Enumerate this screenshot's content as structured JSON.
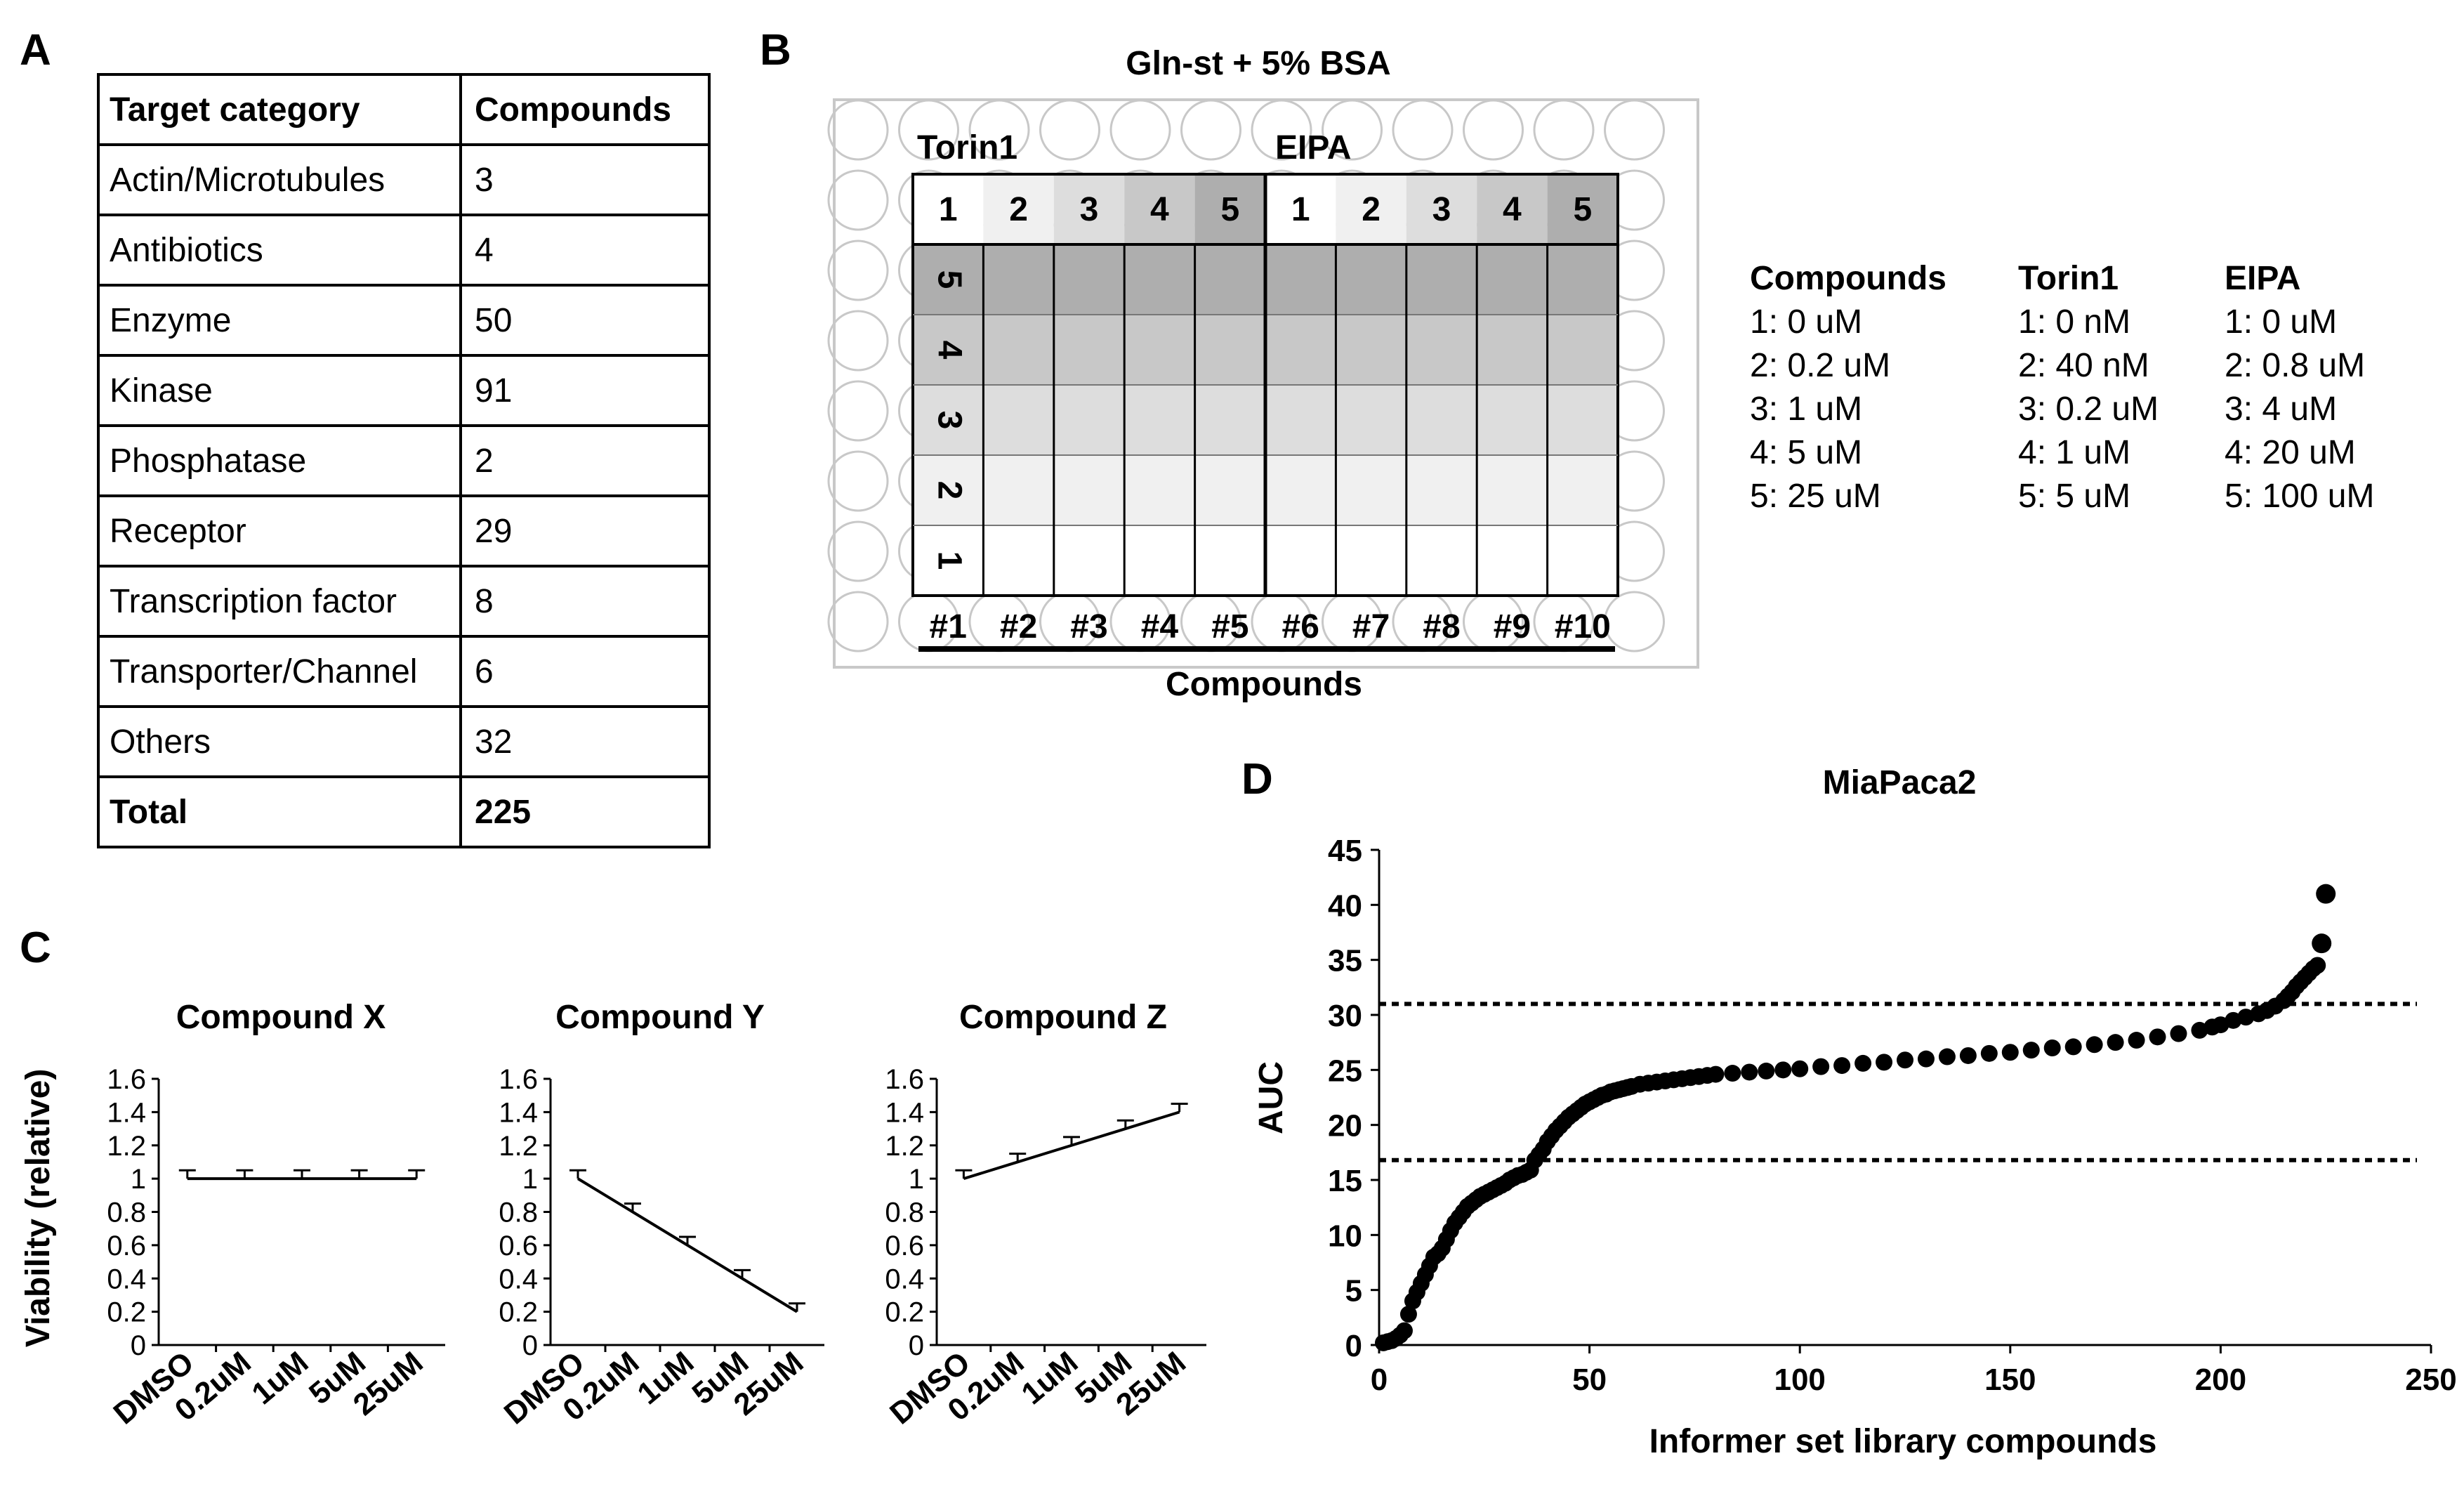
{
  "panels": {
    "a": "A",
    "b": "B",
    "c": "C",
    "d": "D"
  },
  "table": {
    "headers": [
      "Target category",
      "Compounds"
    ],
    "rows": [
      [
        "Actin/Microtubules",
        "3"
      ],
      [
        "Antibiotics",
        "4"
      ],
      [
        "Enzyme",
        "50"
      ],
      [
        "Kinase",
        "91"
      ],
      [
        "Phosphatase",
        "2"
      ],
      [
        "Receptor",
        "29"
      ],
      [
        "Transcription factor",
        "8"
      ],
      [
        "Transporter/Channel",
        "6"
      ],
      [
        "Others",
        "32"
      ]
    ],
    "total": [
      "Total",
      "225"
    ]
  },
  "plate": {
    "title": "Gln-st + 5% BSA",
    "drug_left": "Torin1",
    "drug_right": "EIPA",
    "dose_labels": [
      "1",
      "2",
      "3",
      "4",
      "5"
    ],
    "row_labels": [
      "5",
      "4",
      "3",
      "2",
      "1"
    ],
    "compound_labels": [
      "#1",
      "#2",
      "#3",
      "#4",
      "#5",
      "#6",
      "#7",
      "#8",
      "#9",
      "#10"
    ],
    "axis_label": "Compounds",
    "legend": [
      {
        "header": "Compounds",
        "items": [
          "1: 0 uM",
          "2: 0.2 uM",
          "3: 1 uM",
          "4: 5 uM",
          "5: 25 uM"
        ]
      },
      {
        "header": "Torin1",
        "items": [
          "1: 0 nM",
          "2: 40 nM",
          "3: 0.2 uM",
          "4: 1 uM",
          "5: 5 uM"
        ]
      },
      {
        "header": "EIPA",
        "items": [
          "1: 0 uM",
          "2: 0.8 uM",
          "3: 4 uM",
          "4: 20 uM",
          "5: 100 uM"
        ]
      }
    ]
  },
  "colors": {
    "cell_fill": [
      "#ffffff",
      "#f0f0f0",
      "#dddddd",
      "#c8c8c8",
      "#aeaeae"
    ],
    "well": "#c8c8c8",
    "ink": "#000000"
  },
  "chart_data": [
    {
      "type": "line",
      "title": "Compound X",
      "ylabel": "Viability (relative)",
      "categories": [
        "DMSO",
        "0.2uM",
        "1uM",
        "5uM",
        "25uM"
      ],
      "values": [
        1.0,
        1.0,
        1.0,
        1.0,
        1.0
      ],
      "error": [
        0.05,
        0.05,
        0.05,
        0.05,
        0.05
      ],
      "ylim": [
        0,
        1.6
      ],
      "yticks": [
        "0",
        "0.2",
        "0.4",
        "0.6",
        "0.8",
        "1",
        "1.2",
        "1.4",
        "1.6"
      ]
    },
    {
      "type": "line",
      "title": "Compound Y",
      "categories": [
        "DMSO",
        "0.2uM",
        "1uM",
        "5uM",
        "25uM"
      ],
      "values": [
        1.0,
        0.8,
        0.6,
        0.4,
        0.2
      ],
      "error": [
        0.05,
        0.05,
        0.05,
        0.05,
        0.05
      ],
      "ylim": [
        0,
        1.6
      ],
      "yticks": [
        "0",
        "0.2",
        "0.4",
        "0.6",
        "0.8",
        "1",
        "1.2",
        "1.4",
        "1.6"
      ]
    },
    {
      "type": "line",
      "title": "Compound Z",
      "categories": [
        "DMSO",
        "0.2uM",
        "1uM",
        "5uM",
        "25uM"
      ],
      "values": [
        1.0,
        1.1,
        1.2,
        1.3,
        1.4
      ],
      "error": [
        0.05,
        0.05,
        0.05,
        0.05,
        0.05
      ],
      "ylim": [
        0,
        1.6
      ],
      "yticks": [
        "0",
        "0.2",
        "0.4",
        "0.6",
        "0.8",
        "1",
        "1.2",
        "1.4",
        "1.6"
      ]
    },
    {
      "type": "scatter",
      "title": "MiaPaca2",
      "xlabel": "Informer set library compounds",
      "ylabel": "AUC",
      "xlim": [
        0,
        250
      ],
      "ylim": [
        0,
        45
      ],
      "xticks": [
        "0",
        "50",
        "100",
        "150",
        "200",
        "250"
      ],
      "yticks": [
        "0",
        "5",
        "10",
        "15",
        "20",
        "25",
        "30",
        "35",
        "40",
        "45"
      ],
      "thresholds": [
        16.8,
        31
      ],
      "points": [
        [
          1,
          0.2
        ],
        [
          2,
          0.3
        ],
        [
          3,
          0.4
        ],
        [
          4,
          0.6
        ],
        [
          5,
          0.9
        ],
        [
          6,
          1.3
        ],
        [
          7,
          2.8
        ],
        [
          8,
          4
        ],
        [
          9,
          4.8
        ],
        [
          10,
          5.6
        ],
        [
          11,
          6.4
        ],
        [
          12,
          7.2
        ],
        [
          13,
          8
        ],
        [
          14,
          8.3
        ],
        [
          15,
          8.8
        ],
        [
          16,
          9.6
        ],
        [
          17,
          10.4
        ],
        [
          18,
          11.1
        ],
        [
          19,
          11.6
        ],
        [
          20,
          12.1
        ],
        [
          21,
          12.6
        ],
        [
          22,
          12.9
        ],
        [
          23,
          13.2
        ],
        [
          24,
          13.5
        ],
        [
          25,
          13.7
        ],
        [
          26,
          13.9
        ],
        [
          27,
          14.1
        ],
        [
          28,
          14.3
        ],
        [
          29,
          14.5
        ],
        [
          30,
          14.7
        ],
        [
          31,
          15
        ],
        [
          32,
          15.2
        ],
        [
          33,
          15.4
        ],
        [
          34,
          15.5
        ],
        [
          35,
          15.7
        ],
        [
          36,
          15.9
        ],
        [
          37,
          16.8
        ],
        [
          38,
          17.3
        ],
        [
          39,
          17.8
        ],
        [
          40,
          18.5
        ],
        [
          41,
          19
        ],
        [
          42,
          19.5
        ],
        [
          43,
          19.9
        ],
        [
          44,
          20.3
        ],
        [
          45,
          20.7
        ],
        [
          46,
          21
        ],
        [
          47,
          21.3
        ],
        [
          48,
          21.6
        ],
        [
          49,
          21.9
        ],
        [
          50,
          22.1
        ],
        [
          51,
          22.3
        ],
        [
          52,
          22.5
        ],
        [
          53,
          22.7
        ],
        [
          54,
          22.8
        ],
        [
          55,
          23
        ],
        [
          56,
          23.1
        ],
        [
          57,
          23.2
        ],
        [
          58,
          23.3
        ],
        [
          59,
          23.4
        ],
        [
          60,
          23.5
        ],
        [
          62,
          23.7
        ],
        [
          64,
          23.8
        ],
        [
          66,
          23.9
        ],
        [
          68,
          24
        ],
        [
          70,
          24.1
        ],
        [
          72,
          24.2
        ],
        [
          74,
          24.3
        ],
        [
          76,
          24.4
        ],
        [
          78,
          24.5
        ],
        [
          80,
          24.6
        ],
        [
          84,
          24.7
        ],
        [
          88,
          24.8
        ],
        [
          92,
          24.9
        ],
        [
          96,
          25
        ],
        [
          100,
          25.1
        ],
        [
          105,
          25.3
        ],
        [
          110,
          25.4
        ],
        [
          115,
          25.6
        ],
        [
          120,
          25.7
        ],
        [
          125,
          25.9
        ],
        [
          130,
          26
        ],
        [
          135,
          26.2
        ],
        [
          140,
          26.3
        ],
        [
          145,
          26.5
        ],
        [
          150,
          26.6
        ],
        [
          155,
          26.8
        ],
        [
          160,
          27
        ],
        [
          165,
          27.1
        ],
        [
          170,
          27.3
        ],
        [
          175,
          27.5
        ],
        [
          180,
          27.7
        ],
        [
          185,
          28
        ],
        [
          190,
          28.3
        ],
        [
          195,
          28.6
        ],
        [
          198,
          28.9
        ],
        [
          200,
          29.1
        ],
        [
          203,
          29.5
        ],
        [
          206,
          29.8
        ],
        [
          209,
          30.1
        ],
        [
          211,
          30.4
        ],
        [
          213,
          30.8
        ],
        [
          215,
          31.3
        ],
        [
          216,
          31.7
        ],
        [
          217,
          32.1
        ],
        [
          218,
          32.6
        ],
        [
          219,
          33
        ],
        [
          220,
          33.4
        ],
        [
          221,
          33.8
        ],
        [
          222,
          34.2
        ],
        [
          223,
          34.5
        ],
        [
          224,
          36.5
        ],
        [
          225,
          41
        ]
      ]
    }
  ]
}
